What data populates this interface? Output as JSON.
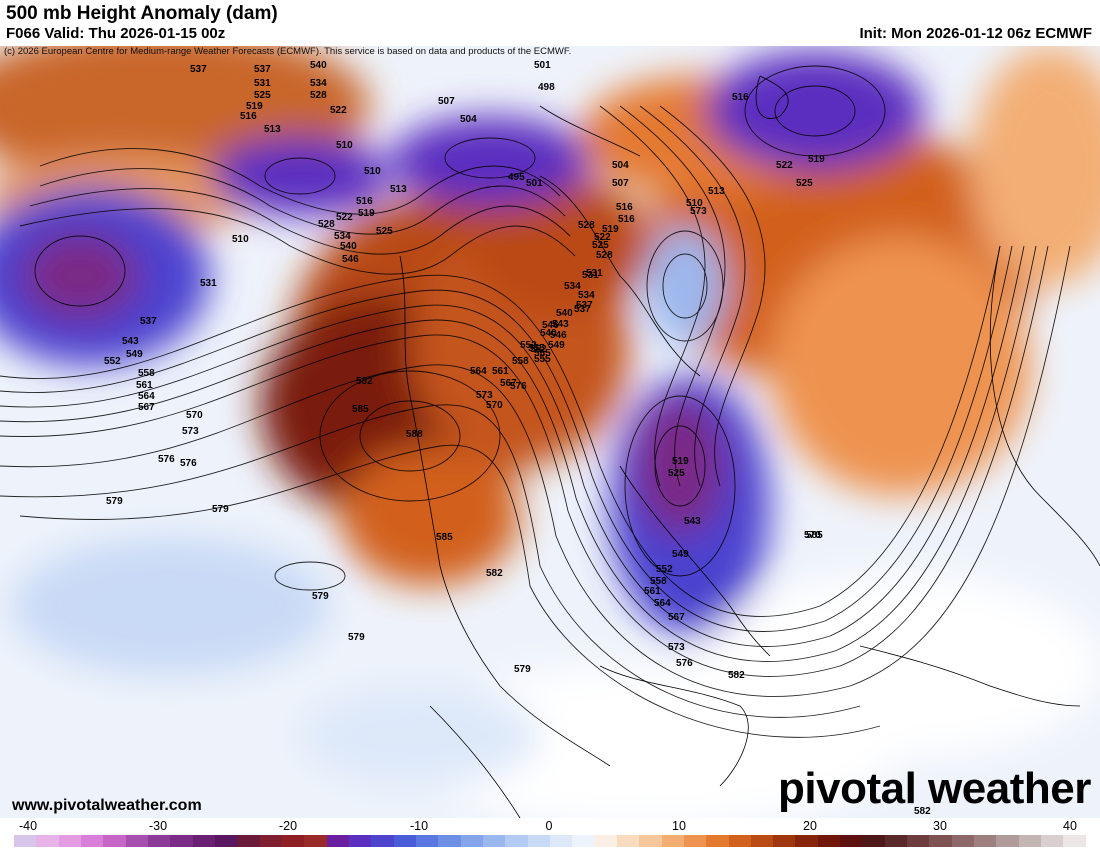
{
  "header": {
    "title": "500 mb Height Anomaly (dam)",
    "valid": "F066 Valid: Thu 2026-01-15 00z",
    "init": "Init: Mon 2026-01-12 06z ECMWF"
  },
  "copyright": "(c) 2026 European Centre for Medium-range Weather Forecasts (ECMWF). This service is based on data and products of the ECMWF.",
  "site": "www.pivotalweather.com",
  "logo": "pivotal weather",
  "colorbar": {
    "ticks": [
      "-40",
      "-30",
      "-20",
      "-10",
      "0",
      "10",
      "20",
      "30",
      "40"
    ],
    "colors": [
      "#d8c6ea",
      "#e7b4ea",
      "#e39be2",
      "#d97fda",
      "#c866c8",
      "#a64fae",
      "#8c3a98",
      "#7a2b86",
      "#6b1f72",
      "#5a1660",
      "#6b1a3a",
      "#7e1e2e",
      "#8f1f22",
      "#9a2a2a",
      "#6a1fa0",
      "#5b2fc0",
      "#4c43cf",
      "#4a5cd8",
      "#5a78df",
      "#6d8fe4",
      "#84a5ea",
      "#9bb8ee",
      "#b3caf2",
      "#c9daf6",
      "#dde8f9",
      "#eef3fb",
      "#fbeee2",
      "#f9dcc0",
      "#f7c79c",
      "#f3ae74",
      "#ee9350",
      "#e47930",
      "#d2611e",
      "#ba4a14",
      "#9f3610",
      "#87250c",
      "#70170a",
      "#5c1010",
      "#4e1818",
      "#5a2a2a",
      "#6d3d3d",
      "#7f5252",
      "#8e6868",
      "#9e8080",
      "#b09a9a",
      "#c4b5b5",
      "#d9cfcf",
      "#ece6e6"
    ]
  },
  "height_labels": [
    "537",
    "537",
    "540",
    "531",
    "534",
    "525",
    "528",
    "519",
    "522",
    "516",
    "513",
    "510",
    "507",
    "504",
    "501",
    "498",
    "495",
    "501",
    "504",
    "507",
    "510",
    "513",
    "516",
    "519",
    "522",
    "525",
    "528",
    "531",
    "534",
    "537",
    "540",
    "543",
    "546",
    "549",
    "552",
    "555",
    "558",
    "561",
    "564",
    "567",
    "570",
    "573",
    "576",
    "579",
    "582",
    "585",
    "588",
    "585",
    "582",
    "579",
    "576",
    "573",
    "570",
    "567",
    "564",
    "561",
    "558",
    "555",
    "552",
    "549",
    "546",
    "543",
    "540",
    "534",
    "525",
    "519",
    "516",
    "519",
    "522",
    "525",
    "528",
    "531",
    "537",
    "543",
    "549",
    "552",
    "558",
    "561",
    "564",
    "567",
    "570",
    "573",
    "576",
    "579",
    "579",
    "576",
    "579",
    "582",
    "582",
    "585",
    "573",
    "510",
    "513",
    "516",
    "510",
    "516",
    "519",
    "522",
    "525",
    "528",
    "531",
    "534",
    "537",
    "540",
    "546",
    "552",
    "555"
  ],
  "legend_units": "dam"
}
